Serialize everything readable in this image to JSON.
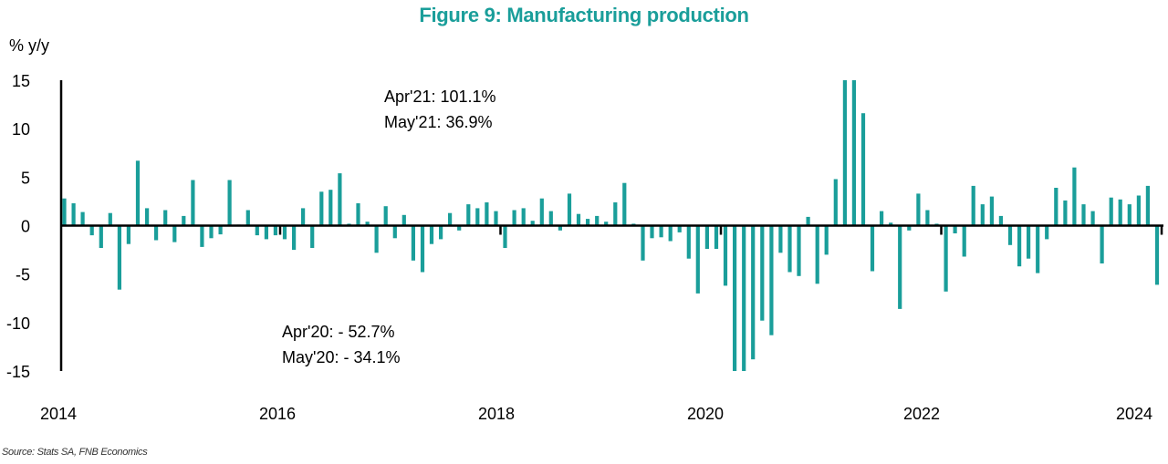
{
  "title": "Figure 9: Manufacturing production",
  "source": "Source: Stats SA, FNB Economics",
  "chart_data": {
    "type": "bar",
    "title": "Figure 9: Manufacturing production",
    "xlabel": "",
    "ylabel": "% y/y",
    "ylim": [
      -15,
      15
    ],
    "yticks": [
      15,
      10,
      5,
      0,
      -5,
      -10,
      -15
    ],
    "xticks": [
      "2014",
      "2016",
      "2018",
      "2020",
      "2022",
      "2024"
    ],
    "frequency": "monthly",
    "start": "2014-01",
    "end": "2024-04",
    "grid": false,
    "series": [
      {
        "name": "Manufacturing production % y/y",
        "color": "#1a9e9a",
        "values": [
          2.8,
          2.3,
          1.4,
          -1.0,
          -2.3,
          1.3,
          -6.6,
          -1.9,
          6.7,
          1.8,
          -1.5,
          1.6,
          -1.7,
          1.0,
          4.7,
          -2.2,
          -1.3,
          -0.9,
          4.7,
          0.1,
          1.6,
          -1.0,
          -1.4,
          -1.0,
          -1.4,
          -2.5,
          1.8,
          -2.3,
          3.5,
          3.7,
          5.4,
          0.2,
          2.3,
          0.4,
          -2.8,
          2.0,
          -1.3,
          1.1,
          -3.6,
          -4.8,
          -1.9,
          -1.4,
          1.3,
          -0.5,
          2.2,
          1.8,
          2.4,
          1.5,
          -2.3,
          1.6,
          1.8,
          0.5,
          2.8,
          1.5,
          -0.5,
          3.3,
          1.2,
          0.7,
          1.0,
          0.4,
          2.4,
          4.4,
          0.2,
          -3.6,
          -1.3,
          -1.2,
          -1.6,
          -0.7,
          -3.4,
          -7.0,
          -2.4,
          -2.4,
          -6.2,
          -52.7,
          -34.1,
          -13.8,
          -9.8,
          -11.3,
          -2.8,
          -4.8,
          -5.2,
          0.9,
          -6.0,
          -3.0,
          4.8,
          101.1,
          36.9,
          11.6,
          -4.7,
          1.5,
          0.3,
          -8.6,
          -0.5,
          3.3,
          1.6,
          0.2,
          -6.8,
          -0.8,
          -3.2,
          4.1,
          2.2,
          3.0,
          1.0,
          -2.0,
          -4.2,
          -3.4,
          -4.9,
          -1.4,
          3.9,
          2.6,
          6.0,
          2.2,
          1.5,
          -3.9,
          2.9,
          2.7,
          2.2,
          3.1,
          4.1,
          -6.1
        ]
      }
    ],
    "annotations": [
      {
        "text": "Apr'21: 101.1%",
        "position": "top-left-center"
      },
      {
        "text": "May'21: 36.9%",
        "position": "top-left-center"
      },
      {
        "text": "Apr'20: - 52.7%",
        "position": "bottom-left"
      },
      {
        "text": "May'20: - 34.1%",
        "position": "bottom-left"
      }
    ]
  },
  "annotations": {
    "top": [
      "Apr'21: 101.1%",
      "May'21: 36.9%"
    ],
    "bottom": [
      "Apr'20: - 52.7%",
      "May'20: - 34.1%"
    ]
  }
}
